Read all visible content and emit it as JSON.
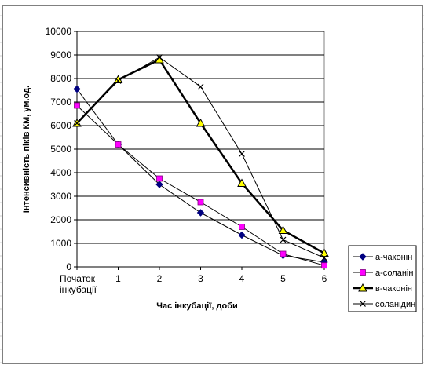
{
  "chart_data": {
    "type": "line",
    "x_categories": [
      "Початок\nінкубації",
      "1",
      "2",
      "3",
      "4",
      "5",
      "6"
    ],
    "x": [
      0,
      1,
      2,
      3,
      4,
      5,
      6
    ],
    "xlabel": "Час інкубації, доби",
    "ylabel": "Інтенсивність піків КМ, ум.од.",
    "ylim": [
      0,
      10000
    ],
    "yticks": [
      0,
      1000,
      2000,
      3000,
      4000,
      5000,
      6000,
      7000,
      8000,
      9000,
      10000
    ],
    "grid": "horizontal",
    "legend_position": "bottom-right",
    "series": [
      {
        "name": "а-чаконін",
        "marker": "diamond",
        "color": "#000080",
        "line_width": 1,
        "values": [
          7550,
          5200,
          3500,
          2300,
          1350,
          480,
          200
        ]
      },
      {
        "name": "а-соланін",
        "marker": "square",
        "color": "#ff00ff",
        "line_width": 1,
        "values": [
          6850,
          5200,
          3750,
          2750,
          1700,
          550,
          60
        ]
      },
      {
        "name": "в-чаконін",
        "marker": "triangle",
        "color": "#ffff00",
        "line_width": 2.5,
        "values": [
          6100,
          7950,
          8800,
          6100,
          3550,
          1550,
          580
        ]
      },
      {
        "name": "соланідин",
        "marker": "x",
        "color": "#000000",
        "line_width": 1,
        "values": [
          6100,
          7900,
          8900,
          7650,
          4800,
          1150,
          380
        ]
      }
    ]
  }
}
